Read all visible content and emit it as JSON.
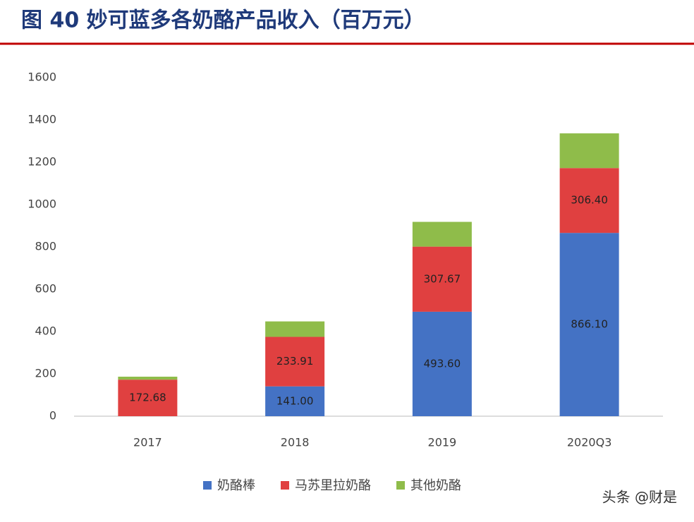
{
  "chart_data": {
    "type": "stacked-bar",
    "title": "图 40 妙可蓝多各奶酪产品收入（百万元）",
    "categories": [
      "2017",
      "2018",
      "2019",
      "2020Q3"
    ],
    "series": [
      {
        "name": "奶酪棒",
        "color": "#4472c4",
        "values": [
          0,
          141.0,
          493.6,
          866.1
        ],
        "value_labels": [
          null,
          "141.00",
          "493.60",
          "866.10"
        ]
      },
      {
        "name": "马苏里拉奶酪",
        "color": "#e04040",
        "values": [
          172.68,
          233.91,
          307.67,
          306.4
        ],
        "value_labels": [
          "172.68",
          "233.91",
          "307.67",
          "306.40"
        ]
      },
      {
        "name": "其他奶酪",
        "color": "#8fbc4a",
        "values": [
          14,
          73,
          117,
          164
        ]
      }
    ],
    "ylim": [
      0,
      1600
    ],
    "yticks": [
      0,
      200,
      400,
      600,
      800,
      1000,
      1200,
      1400,
      1600
    ],
    "watermark": "头条 @财是"
  }
}
